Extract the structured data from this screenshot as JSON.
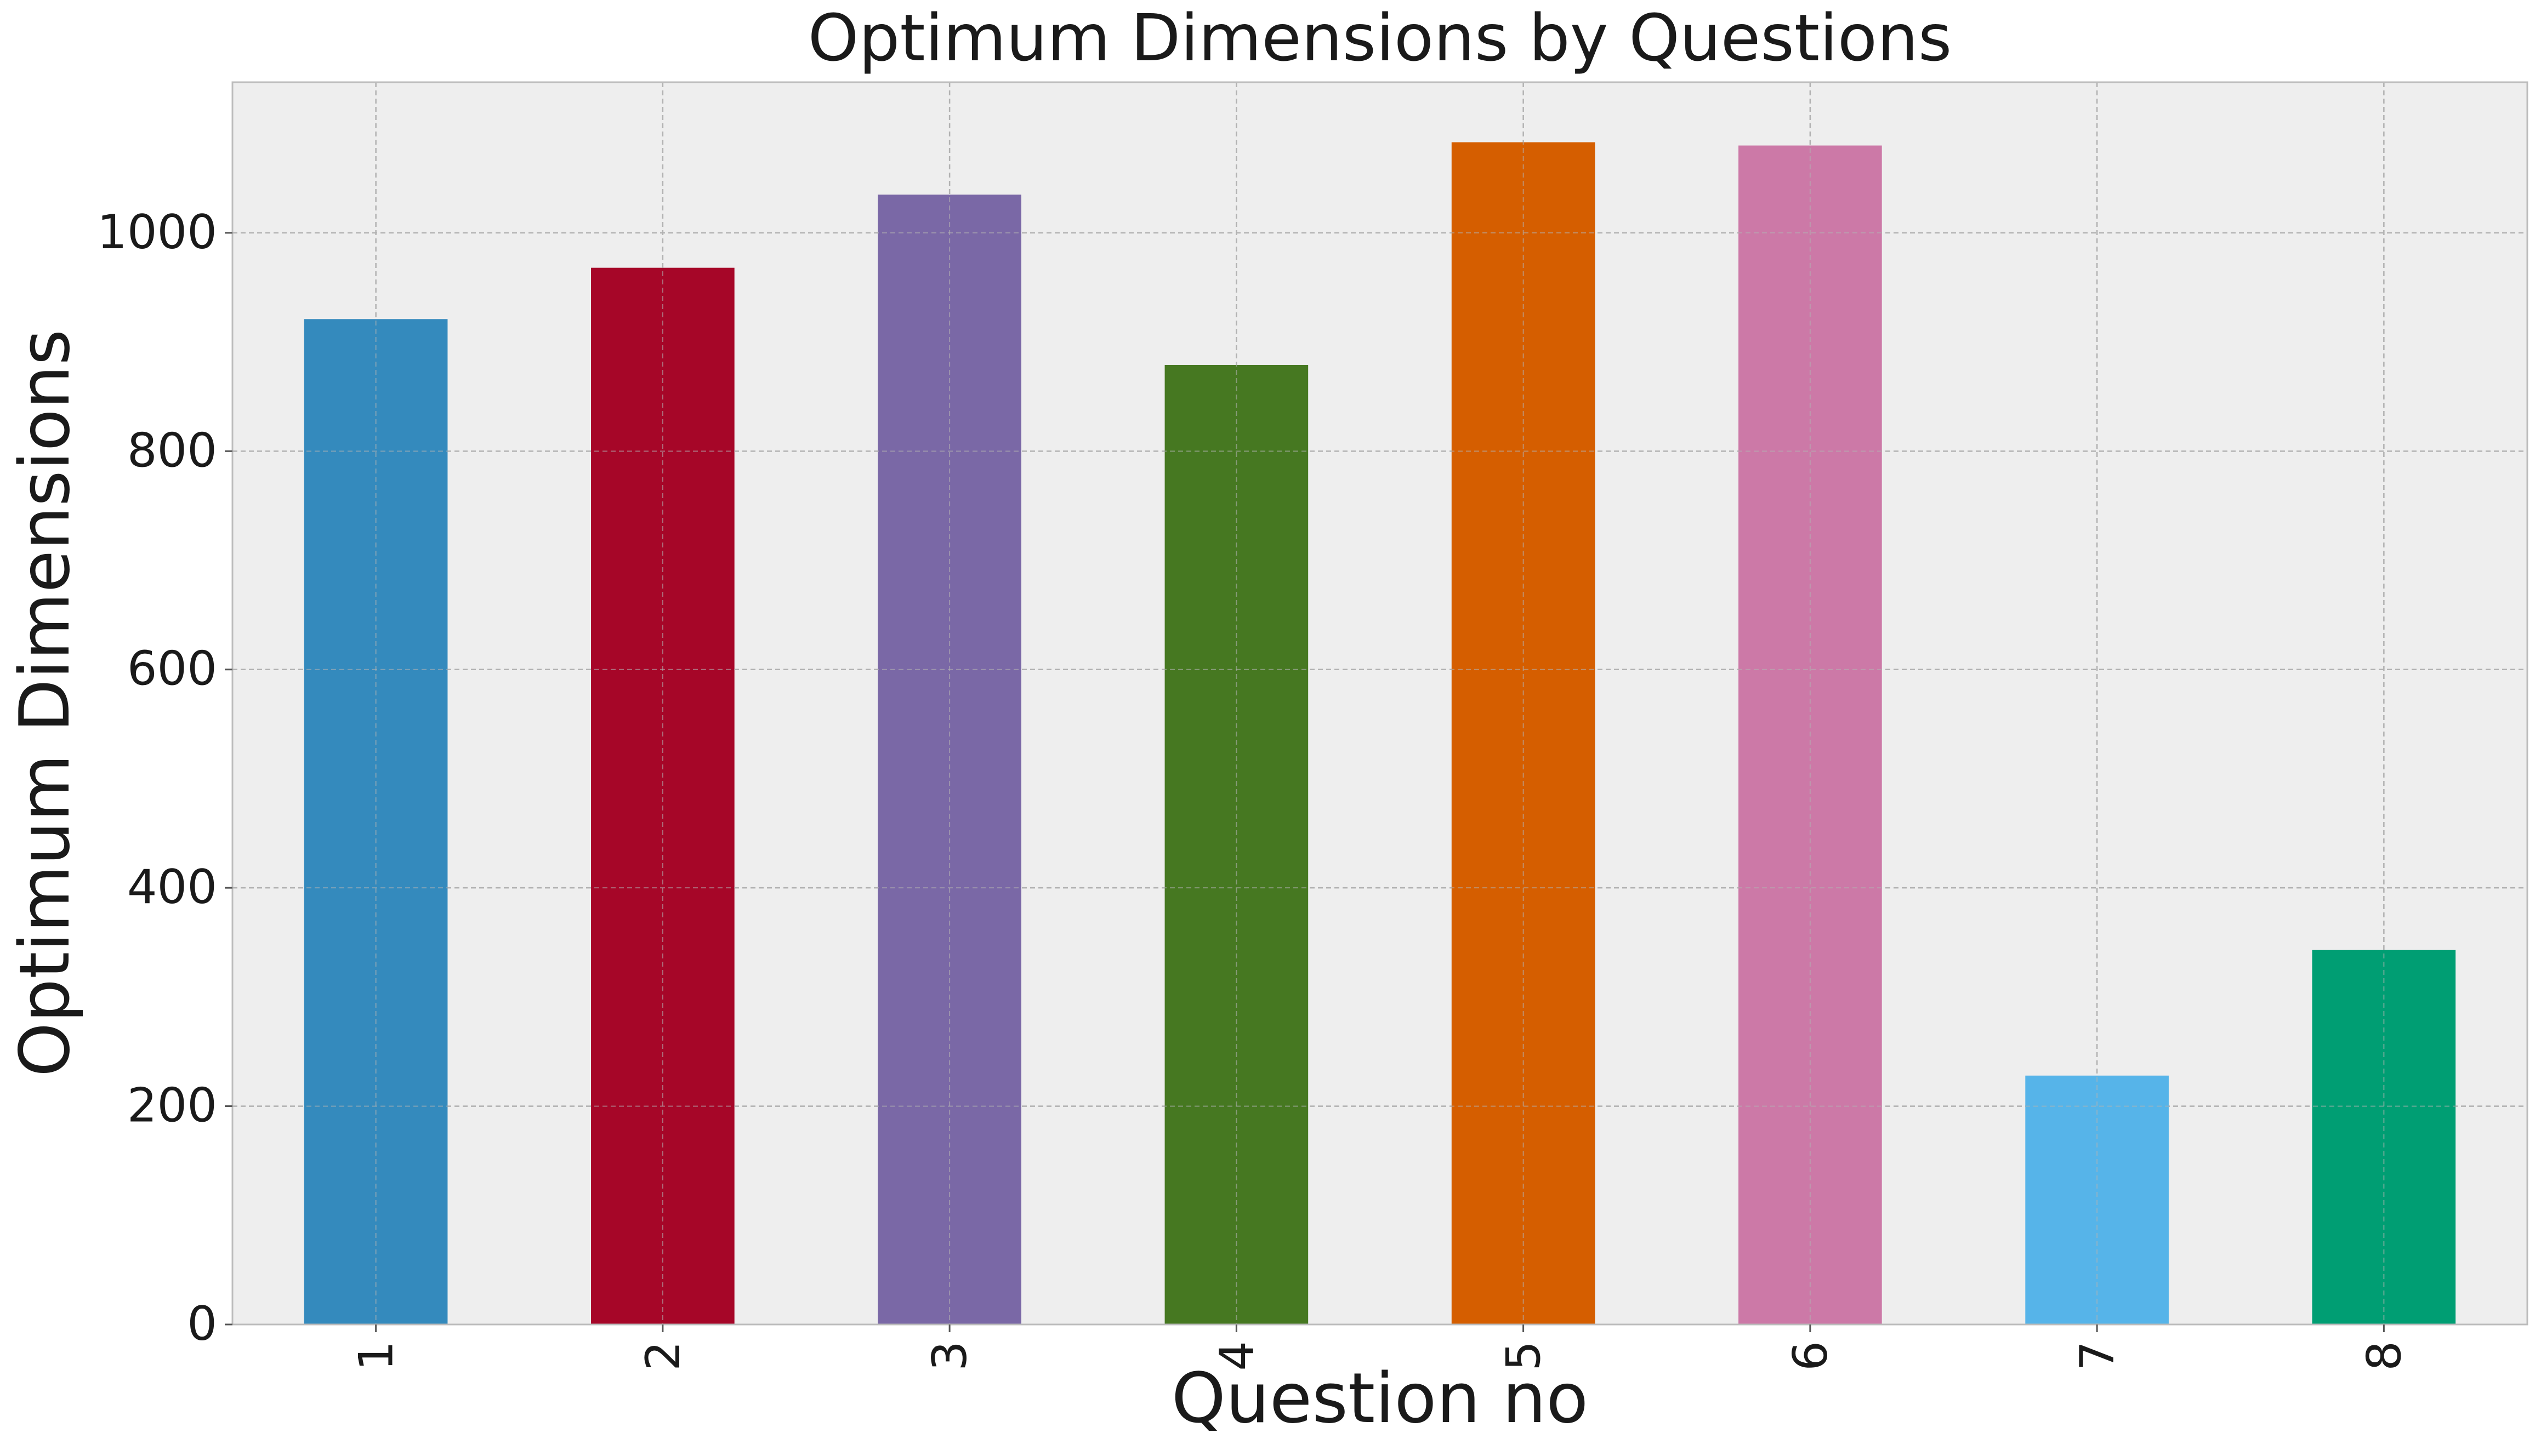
{
  "chart_data": {
    "type": "bar",
    "title": "Optimum Dimensions by Questions",
    "xlabel": "Question no",
    "ylabel": "Optimum Dimensions",
    "categories": [
      "1",
      "2",
      "3",
      "4",
      "5",
      "6",
      "7",
      "8"
    ],
    "values": [
      921,
      968,
      1035,
      879,
      1083,
      1080,
      228,
      343
    ],
    "colors": [
      "#348ABD",
      "#A60628",
      "#7A68A6",
      "#467821",
      "#D55E00",
      "#CC79A7",
      "#56B4E9",
      "#009E73"
    ],
    "ylim": [
      0,
      1138
    ],
    "yticks": [
      0,
      200,
      400,
      600,
      800,
      1000
    ],
    "ytick_labels": [
      "0",
      "200",
      "400",
      "600",
      "800",
      "1000"
    ],
    "grid": true,
    "legend": "none",
    "style": {
      "background": "#EEEEEE",
      "grid_color": "#B2B2B2",
      "spine_color": "#BCBCBC"
    }
  }
}
